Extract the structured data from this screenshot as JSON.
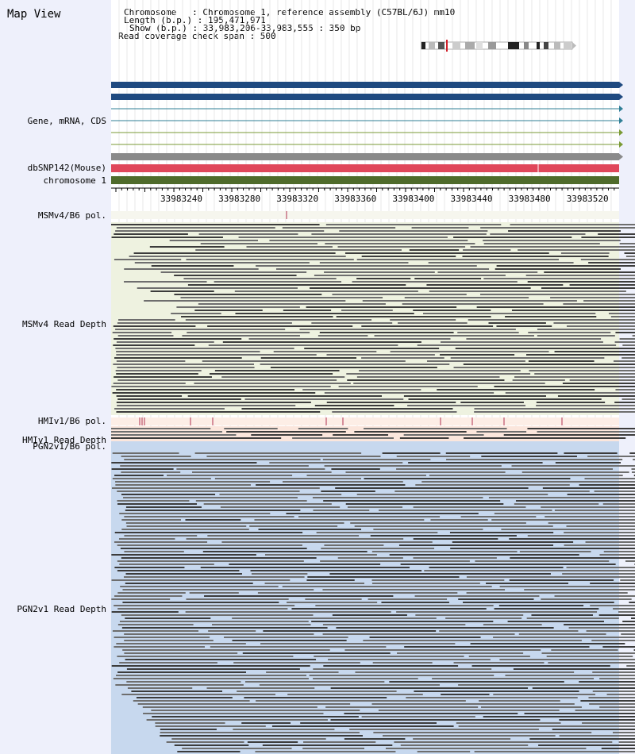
{
  "panel_title": "Map View",
  "info": {
    "chromosome_line": "Chromosome   : Chromosome 1, reference assembly (C57BL/6J) mm10",
    "length_line": "Length (b.p.) : 195,471,971",
    "show_line": "Show (b.p.) : 33,983,206-33,983,555 : 350 bp",
    "coverage_line": "Read coverage check span : 500"
  },
  "tracks": {
    "gene": "Gene, mRNA, CDS",
    "dbsnp": "dbSNP142(Mouse)",
    "chromosome": "chromosome 1",
    "msm_pol": "MSMv4/B6 pol.",
    "msm_depth": "MSMv4 Read Depth",
    "hmi_pol": "HMIv1/B6 pol.",
    "hmi_depth": "HMIv1 Read Depth",
    "pgn_pol": "PGN2v1/B6 pol.",
    "pgn_depth": "PGN2v1 Read Depth"
  },
  "ruler": {
    "tick_labels": [
      "33983240",
      "33983280",
      "33983320",
      "33983360",
      "33983400",
      "33983440",
      "33983480",
      "33983520"
    ]
  },
  "colors": {
    "panel_bg": "#eef0fb",
    "gene_bar": "#1f4a80",
    "gene_line": "#2f7f96",
    "gene_line_alt": "#7a9a34",
    "snp_gray": "#8a8a8a",
    "snp_red": "#e0475a",
    "chromosome_bar": "#4f6b2b",
    "msm_bg": "#eef2e0",
    "hmi_bg": "#fbe6dc",
    "pgn_bg": "#c7d8ee",
    "read_dark": "#3c3c3c",
    "read_light": "#6e6e6e",
    "pol_mark": "#b03050"
  }
}
